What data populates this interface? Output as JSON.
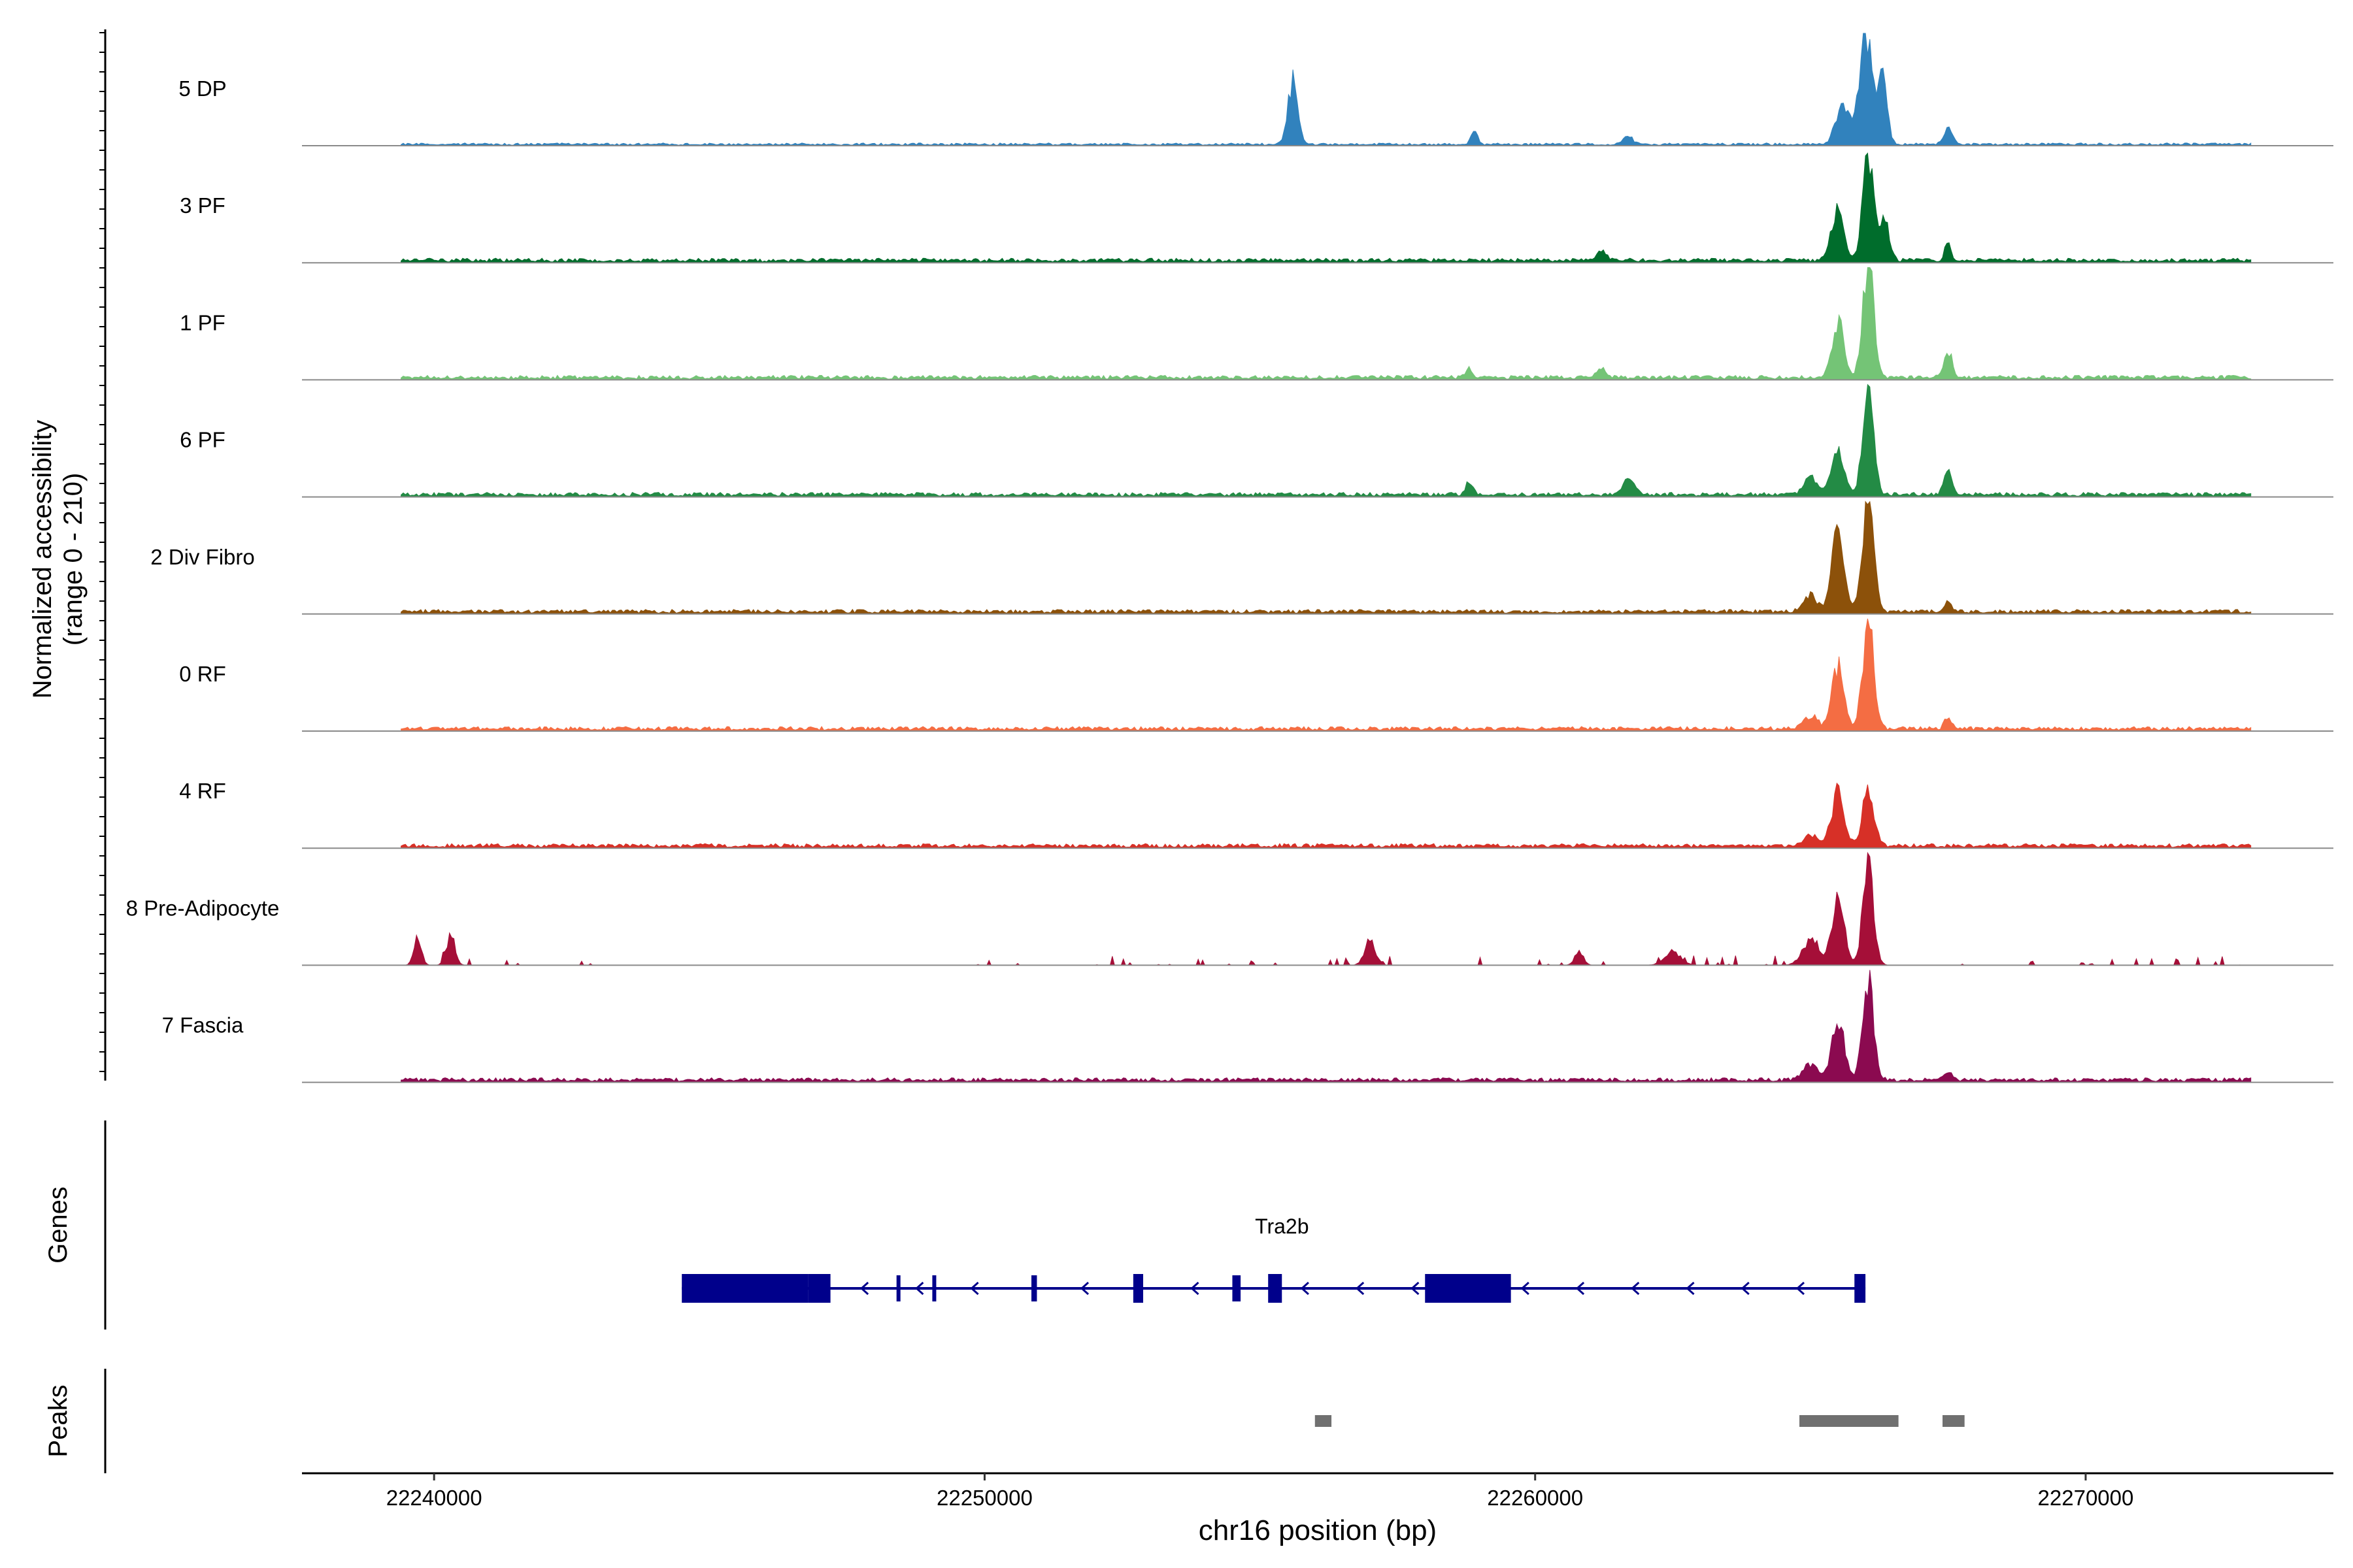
{
  "chart_data": {
    "type": "area",
    "subtype": "genome-coverage-track",
    "chromosome": "chr16",
    "xlabel": "chr16 position (bp)",
    "xlim": [
      22237600,
      22274500
    ],
    "xticks": [
      22240000,
      22250000,
      22260000,
      22270000
    ],
    "xtick_labels": [
      "22240000",
      "22250000",
      "22260000",
      "22270000"
    ],
    "ylabel_line1": "Normalized accessibility",
    "ylabel_line2": "(range 0 - 210)",
    "ylim": [
      0,
      210
    ],
    "grid": false,
    "legend": "none",
    "signal_extent": [
      22239400,
      22273000
    ],
    "series": [
      {
        "name": "5 DP",
        "color": "#3182BD",
        "baseline": 3,
        "peaks": [
          [
            22265600,
            75,
            130
          ],
          [
            22266000,
            210,
            110
          ],
          [
            22266300,
            120,
            90
          ],
          [
            22255600,
            115,
            90
          ],
          [
            22258900,
            25,
            60
          ],
          [
            22267500,
            35,
            70
          ],
          [
            22261700,
            15,
            80
          ]
        ]
      },
      {
        "name": "3 PF",
        "color": "#006D2C",
        "baseline": 5,
        "peaks": [
          [
            22265500,
            95,
            110
          ],
          [
            22266050,
            200,
            100
          ],
          [
            22266350,
            80,
            80
          ],
          [
            22267500,
            30,
            60
          ],
          [
            22261200,
            18,
            80
          ]
        ]
      },
      {
        "name": "1 PF",
        "color": "#74C476",
        "baseline": 5,
        "peaks": [
          [
            22265500,
            105,
            110
          ],
          [
            22266050,
            210,
            100
          ],
          [
            22267500,
            50,
            70
          ],
          [
            22261200,
            20,
            70
          ],
          [
            22258800,
            15,
            60
          ]
        ]
      },
      {
        "name": "6 PF",
        "color": "#238B45",
        "baseline": 5,
        "peaks": [
          [
            22265500,
            90,
            110
          ],
          [
            22266050,
            190,
            100
          ],
          [
            22267500,
            50,
            70
          ],
          [
            22261700,
            30,
            100
          ],
          [
            22258800,
            25,
            60
          ],
          [
            22265000,
            35,
            120
          ]
        ]
      },
      {
        "name": "2 Div Fibro",
        "color": "#8C510A",
        "baseline": 5,
        "peaks": [
          [
            22265500,
            155,
            110
          ],
          [
            22266050,
            210,
            100
          ],
          [
            22267500,
            20,
            60
          ],
          [
            22265000,
            30,
            120
          ]
        ]
      },
      {
        "name": "0 RF",
        "color": "#F46D43",
        "baseline": 5,
        "peaks": [
          [
            22265500,
            115,
            110
          ],
          [
            22266050,
            200,
            100
          ],
          [
            22267500,
            20,
            60
          ],
          [
            22265000,
            25,
            120
          ]
        ]
      },
      {
        "name": "4 RF",
        "color": "#D73027",
        "baseline": 5,
        "peaks": [
          [
            22265500,
            105,
            110
          ],
          [
            22266050,
            110,
            100
          ],
          [
            22265000,
            20,
            120
          ]
        ]
      },
      {
        "name": "8 Pre-Adipocyte",
        "color": "#A50F38",
        "baseline": 0,
        "peaks": [
          [
            22265500,
            130,
            110
          ],
          [
            22266050,
            180,
            100
          ],
          [
            22239700,
            50,
            70
          ],
          [
            22240300,
            55,
            80
          ],
          [
            22257000,
            45,
            100
          ],
          [
            22262500,
            25,
            150
          ],
          [
            22265000,
            45,
            150
          ],
          [
            22260800,
            25,
            80
          ]
        ]
      },
      {
        "name": "7 Fascia",
        "color": "#8B0A50",
        "baseline": 5,
        "peaks": [
          [
            22265500,
            110,
            110
          ],
          [
            22266050,
            180,
            100
          ],
          [
            22265000,
            30,
            120
          ],
          [
            22267500,
            15,
            60
          ]
        ]
      }
    ],
    "genes_label": "Genes",
    "gene": {
      "name": "Tra2b",
      "strand": "-",
      "start": 22244500,
      "end": 22266000,
      "color": "#00008B",
      "blocks": [
        [
          22244500,
          22246800
        ],
        [
          22246800,
          22247200
        ],
        [
          22248400,
          22248460
        ],
        [
          22249050,
          22249110
        ],
        [
          22250850,
          22250950
        ],
        [
          22252700,
          22252880
        ],
        [
          22254500,
          22254650
        ],
        [
          22255150,
          22255400
        ],
        [
          22258000,
          22259560
        ],
        [
          22265800,
          22266000
        ]
      ],
      "wide_blocks": [
        [
          22244500,
          22246800
        ],
        [
          22246800,
          22247200
        ],
        [
          22252700,
          22252880
        ],
        [
          22255150,
          22255400
        ],
        [
          22258000,
          22259560
        ],
        [
          22265800,
          22266000
        ]
      ]
    },
    "peaks_label": "Peaks",
    "peak_regions": [
      [
        22256000,
        22256300
      ],
      [
        22264800,
        22266600
      ],
      [
        22267400,
        22267800
      ]
    ],
    "peak_color": "#707070"
  }
}
